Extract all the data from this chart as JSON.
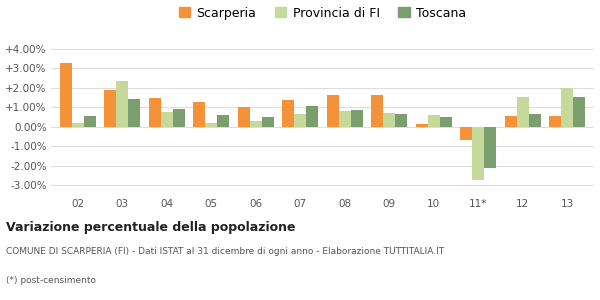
{
  "categories": [
    "02",
    "03",
    "04",
    "05",
    "06",
    "07",
    "08",
    "09",
    "10",
    "11*",
    "12",
    "13"
  ],
  "scarperia": [
    3.28,
    1.9,
    1.5,
    1.25,
    1.0,
    1.35,
    1.65,
    1.65,
    0.15,
    -0.7,
    0.55,
    0.55
  ],
  "provincia_fi": [
    0.2,
    2.35,
    0.75,
    0.2,
    0.3,
    0.65,
    0.8,
    0.7,
    0.6,
    -2.75,
    1.55,
    2.0
  ],
  "toscana": [
    0.55,
    1.4,
    0.92,
    0.6,
    0.48,
    1.05,
    0.85,
    0.65,
    0.52,
    -2.1,
    0.65,
    1.55
  ],
  "color_scarperia": "#f4923a",
  "color_provincia": "#c5d99b",
  "color_toscana": "#7a9e6e",
  "background": "#ffffff",
  "grid_color": "#dddddd",
  "title_main": "Variazione percentuale della popolazione",
  "title_sub1": "COMUNE DI SCARPERIA (FI) - Dati ISTAT al 31 dicembre di ogni anno - Elaborazione TUTTITALIA.IT",
  "title_sub2": "(*) post-censimento",
  "legend_labels": [
    "Scarperia",
    "Provincia di FI",
    "Toscana"
  ],
  "ylim": [
    -3.5,
    4.5
  ],
  "yticks": [
    -3.0,
    -2.0,
    -1.0,
    0.0,
    1.0,
    2.0,
    3.0,
    4.0
  ],
  "ytick_labels": [
    "-3.00%",
    "-2.00%",
    "-1.00%",
    "0.00%",
    "+1.00%",
    "+2.00%",
    "+3.00%",
    "+4.00%"
  ]
}
